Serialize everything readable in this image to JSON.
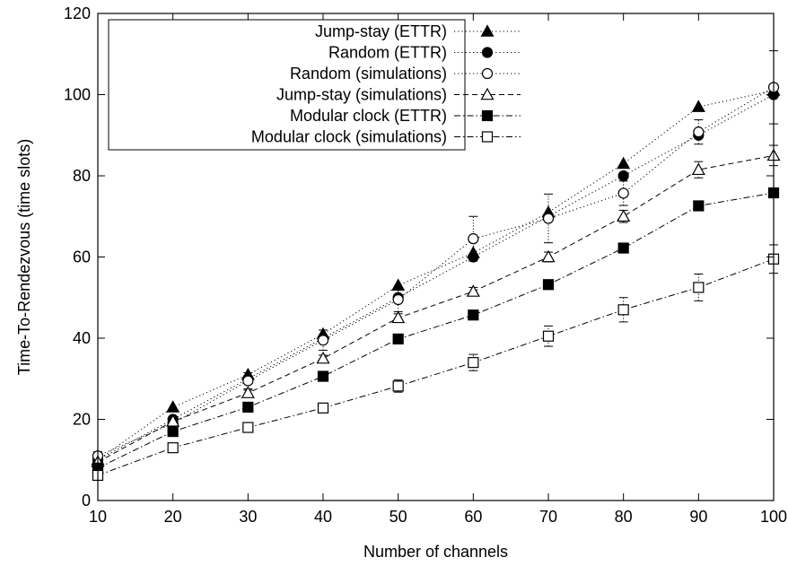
{
  "chart_data": {
    "type": "line",
    "title": "",
    "xlabel": "Number of channels",
    "ylabel": "Time-To-Rendezvous (time slots)",
    "x": [
      10,
      20,
      30,
      40,
      50,
      60,
      70,
      80,
      90,
      100
    ],
    "xlim": [
      10,
      100
    ],
    "ylim": [
      0,
      120
    ],
    "xticks": [
      10,
      20,
      30,
      40,
      50,
      60,
      70,
      80,
      90,
      100
    ],
    "yticks": [
      0,
      20,
      40,
      60,
      80,
      100,
      120
    ],
    "grid": false,
    "legend_position": "top-left",
    "series": [
      {
        "name": "Jump-stay (ETTR)",
        "marker": "filled-triangle",
        "line_style": "dotted",
        "values": [
          10,
          23,
          31,
          41,
          53,
          61,
          71,
          83,
          97,
          101
        ]
      },
      {
        "name": "Random (ETTR)",
        "marker": "filled-circle",
        "line_style": "dotted",
        "values": [
          10,
          20,
          30,
          40,
          50,
          60,
          70,
          80,
          90,
          100
        ]
      },
      {
        "name": "Random (simulations)",
        "marker": "open-circle",
        "line_style": "dotted",
        "values": [
          11,
          19,
          29.5,
          39.5,
          49.5,
          64.5,
          69.5,
          75.7,
          90.8,
          101.8
        ],
        "error": [
          1,
          1.5,
          2,
          2.5,
          3,
          5.5,
          6,
          3,
          3,
          9
        ]
      },
      {
        "name": "Jump-stay (simulations)",
        "marker": "open-triangle",
        "line_style": "dashed",
        "values": [
          9.5,
          19.5,
          26.5,
          35,
          45,
          51.5,
          60,
          70,
          81.5,
          85
        ],
        "error": [
          0.5,
          0.5,
          0.7,
          0.8,
          1,
          1,
          1.2,
          1.5,
          2,
          2.5
        ]
      },
      {
        "name": "Modular clock (ETTR)",
        "marker": "filled-square",
        "line_style": "dash-dot",
        "values": [
          8,
          17,
          23,
          30.6,
          39.8,
          45.7,
          53.2,
          62.2,
          72.6,
          75.8
        ]
      },
      {
        "name": "Modular clock (simulations)",
        "marker": "open-square",
        "line_style": "dash-dot",
        "values": [
          6.2,
          13,
          18,
          22.8,
          28.2,
          34,
          40.5,
          47,
          52.5,
          59.5
        ],
        "error": [
          0.5,
          0.8,
          1,
          1,
          1.5,
          2,
          2.5,
          3,
          3.3,
          3.5
        ]
      }
    ]
  }
}
